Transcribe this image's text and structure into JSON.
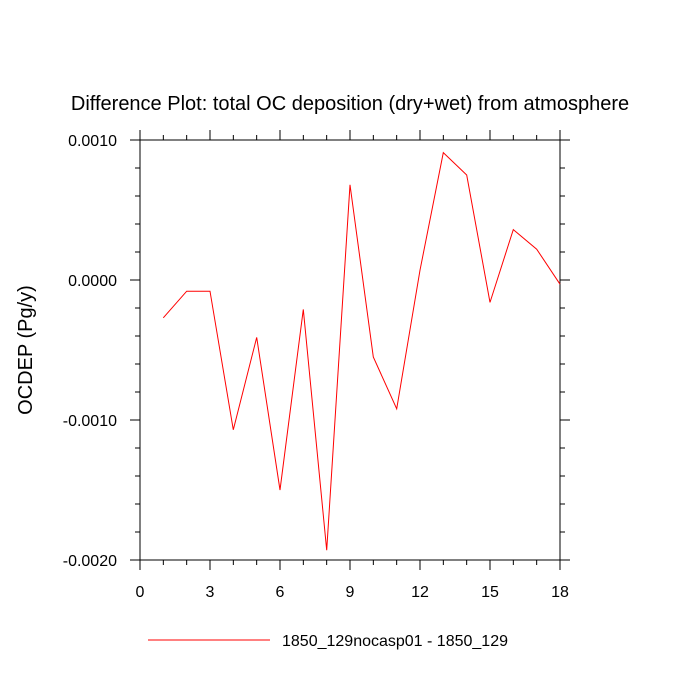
{
  "chart_data": {
    "type": "line",
    "title": "Difference Plot: total OC deposition (dry+wet) from atmosphere",
    "xlabel": "",
    "ylabel": "OCDEP  (Pg/y)",
    "xlim": [
      0,
      18
    ],
    "ylim": [
      -0.002,
      0.001
    ],
    "x_ticks": [
      0,
      3,
      6,
      9,
      12,
      15,
      18
    ],
    "x_tick_labels": [
      "0",
      "3",
      "6",
      "9",
      "12",
      "15",
      "18"
    ],
    "y_ticks": [
      -0.002,
      -0.001,
      0.0,
      0.001
    ],
    "y_tick_labels": [
      "-0.0020",
      "-0.0010",
      "0.0000",
      "0.0010"
    ],
    "x_minor_step": 1,
    "y_minor_step": 0.0002,
    "grid": false,
    "legend_position": "bottom-center",
    "series": [
      {
        "name": "1850_129nocasp01 - 1850_129",
        "color": "#ff0000",
        "x": [
          1,
          2,
          3,
          4,
          5,
          6,
          7,
          8,
          9,
          10,
          11,
          12,
          13,
          14,
          15,
          16,
          17,
          18
        ],
        "values": [
          -0.00027,
          -8e-05,
          -8e-05,
          -0.00107,
          -0.00041,
          -0.0015,
          -0.00021,
          -0.00193,
          0.00068,
          -0.00055,
          -0.00092,
          7e-05,
          0.00091,
          0.00075,
          -0.00016,
          0.00036,
          0.00022,
          -3e-05
        ]
      }
    ]
  }
}
